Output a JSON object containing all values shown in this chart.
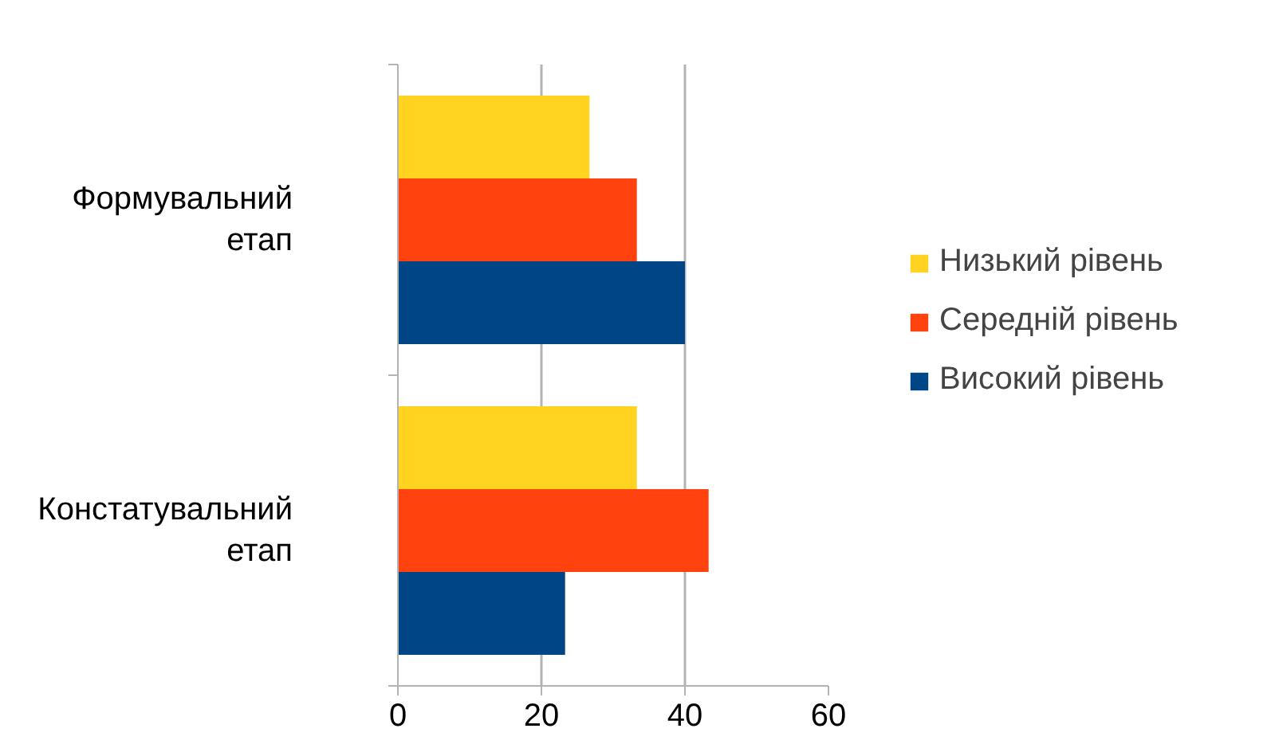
{
  "chart_data": {
    "type": "bar",
    "orientation": "horizontal",
    "categories": [
      "Формувальний етап",
      "Констатувальний етап"
    ],
    "series": [
      {
        "name": "Низький рівень",
        "color": "#ffd320",
        "values": [
          26.7,
          33.3
        ]
      },
      {
        "name": "Середній рівень",
        "color": "#ff420e",
        "values": [
          33.3,
          43.3
        ]
      },
      {
        "name": "Високий рівень",
        "color": "#004586",
        "values": [
          40,
          23.3
        ]
      }
    ],
    "xlim": [
      0,
      60
    ],
    "xticks": [
      0,
      20,
      40,
      60
    ],
    "grid": "x",
    "legend": "right"
  }
}
